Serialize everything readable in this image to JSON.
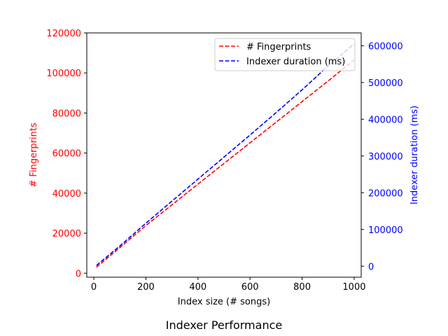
{
  "caption": "Indexer Performance",
  "chart_data": {
    "type": "line",
    "xlabel": "Index size (# songs)",
    "ylabel_left": "# Fingerprints",
    "ylabel_right": "Indexer duration (ms)",
    "xlim": [
      -27,
      1027
    ],
    "ylim_left": [
      -2000,
      120000
    ],
    "ylim_right": [
      -30000,
      635000
    ],
    "xticks": [
      0,
      200,
      400,
      600,
      800,
      1000
    ],
    "yticks_left": [
      0,
      20000,
      40000,
      60000,
      80000,
      100000,
      120000
    ],
    "yticks_right": [
      0,
      100000,
      200000,
      300000,
      400000,
      500000,
      600000
    ],
    "legend_position": "top-right",
    "grid": false,
    "series": [
      {
        "name": "# Fingerprints",
        "axis": "left",
        "color": "#ff0000",
        "style": "dashed",
        "x": [
          10,
          100,
          200,
          300,
          400,
          500,
          600,
          700,
          800,
          900,
          1000
        ],
        "y": [
          3000,
          12800,
          23800,
          34100,
          44500,
          54800,
          65100,
          75400,
          85700,
          96000,
          106500
        ]
      },
      {
        "name": "Indexer duration (ms)",
        "axis": "right",
        "color": "#0000ff",
        "style": "dashed",
        "x": [
          10,
          100,
          200,
          300,
          400,
          500,
          600,
          700,
          800,
          900,
          1000
        ],
        "y": [
          2000,
          55000,
          117000,
          177000,
          237000,
          297000,
          357000,
          418000,
          480000,
          545000,
          605000
        ]
      }
    ]
  }
}
